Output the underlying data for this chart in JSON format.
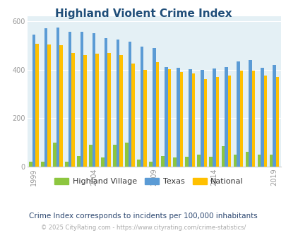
{
  "title": "Highland Violent Crime Index",
  "years": [
    1999,
    2000,
    2001,
    2002,
    2003,
    2004,
    2005,
    2006,
    2007,
    2008,
    2009,
    2010,
    2011,
    2012,
    2013,
    2014,
    2015,
    2016,
    2017,
    2018,
    2019
  ],
  "highland_village": [
    20,
    20,
    100,
    20,
    45,
    90,
    38,
    90,
    100,
    30,
    20,
    45,
    38,
    40,
    50,
    40,
    85,
    48,
    60,
    48,
    48
  ],
  "texas": [
    545,
    570,
    575,
    555,
    555,
    550,
    530,
    525,
    515,
    495,
    490,
    410,
    408,
    403,
    400,
    405,
    410,
    435,
    440,
    408,
    420
  ],
  "national": [
    508,
    505,
    500,
    470,
    460,
    465,
    470,
    460,
    425,
    400,
    430,
    403,
    390,
    385,
    360,
    370,
    375,
    395,
    395,
    375,
    370
  ],
  "bar_colors": {
    "highland_village": "#8dc63f",
    "texas": "#5b9bd5",
    "national": "#ffc000"
  },
  "background_color": "#e4f0f5",
  "title_color": "#1f4e79",
  "tick_color": "#999999",
  "ylim": [
    0,
    620
  ],
  "yticks": [
    0,
    200,
    400,
    600
  ],
  "xtick_years": [
    1999,
    2004,
    2009,
    2014,
    2019
  ],
  "legend_labels": [
    "Highland Village",
    "Texas",
    "National"
  ],
  "subtitle": "Crime Index corresponds to incidents per 100,000 inhabitants",
  "footer": "© 2025 CityRating.com - https://www.cityrating.com/crime-statistics/"
}
